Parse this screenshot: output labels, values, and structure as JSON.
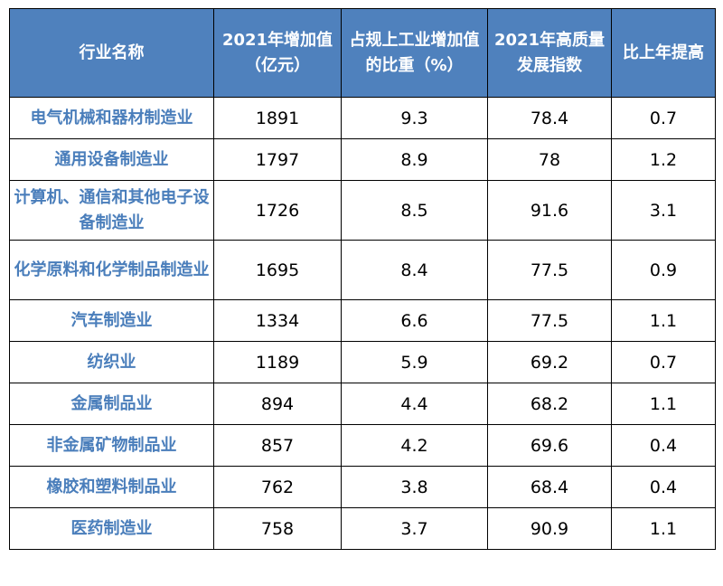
{
  "chart_data": {
    "type": "table",
    "columns": [
      "行业名称",
      "2021年增加值（亿元）",
      "占规上工业增加值的比重（%）",
      "2021年高质量发展指数",
      "比上年提高"
    ],
    "rows": [
      [
        "电气机械和器材制造业",
        "1891",
        "9.3",
        "78.4",
        "0.7"
      ],
      [
        "通用设备制造业",
        "1797",
        "8.9",
        "78",
        "1.2"
      ],
      [
        "计算机、通信和其他电子设备制造业",
        "1726",
        "8.5",
        "91.6",
        "3.1"
      ],
      [
        "化学原料和化学制品制造业",
        "1695",
        "8.4",
        "77.5",
        "0.9"
      ],
      [
        "汽车制造业",
        "1334",
        "6.6",
        "77.5",
        "1.1"
      ],
      [
        "纺织业",
        "1189",
        "5.9",
        "69.2",
        "0.7"
      ],
      [
        "金属制品业",
        "894",
        "4.4",
        "68.2",
        "1.1"
      ],
      [
        "非金属矿物制品业",
        "857",
        "4.2",
        "69.6",
        "0.4"
      ],
      [
        "橡胶和塑料制品业",
        "762",
        "3.8",
        "68.4",
        "0.4"
      ],
      [
        "医药制造业",
        "758",
        "3.7",
        "90.9",
        "1.1"
      ]
    ]
  },
  "colors": {
    "header_bg": "#4f81bd",
    "header_text": "#ffffff",
    "name_text": "#4a7ebb",
    "border": "#000000"
  }
}
